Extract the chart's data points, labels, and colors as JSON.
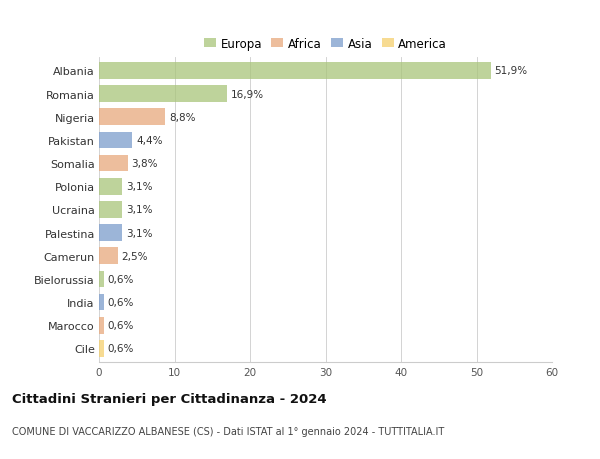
{
  "countries": [
    "Albania",
    "Romania",
    "Nigeria",
    "Pakistan",
    "Somalia",
    "Polonia",
    "Ucraina",
    "Palestina",
    "Camerun",
    "Bielorussia",
    "India",
    "Marocco",
    "Cile"
  ],
  "values": [
    51.9,
    16.9,
    8.8,
    4.4,
    3.8,
    3.1,
    3.1,
    3.1,
    2.5,
    0.6,
    0.6,
    0.6,
    0.6
  ],
  "labels": [
    "51,9%",
    "16,9%",
    "8,8%",
    "4,4%",
    "3,8%",
    "3,1%",
    "3,1%",
    "3,1%",
    "2,5%",
    "0,6%",
    "0,6%",
    "0,6%",
    "0,6%"
  ],
  "bar_colors": [
    "#a8c57a",
    "#a8c57a",
    "#e8a87c",
    "#7b9ccc",
    "#e8a87c",
    "#a8c57a",
    "#a8c57a",
    "#7b9ccc",
    "#e8a87c",
    "#a8c57a",
    "#7b9ccc",
    "#e8a87c",
    "#f5d06e"
  ],
  "legend_items": [
    {
      "label": "Europa",
      "color": "#a8c57a"
    },
    {
      "label": "Africa",
      "color": "#e8a87c"
    },
    {
      "label": "Asia",
      "color": "#7b9ccc"
    },
    {
      "label": "America",
      "color": "#f5d06e"
    }
  ],
  "xlim": [
    0,
    60
  ],
  "xticks": [
    0,
    10,
    20,
    30,
    40,
    50,
    60
  ],
  "title": "Cittadini Stranieri per Cittadinanza - 2024",
  "subtitle": "COMUNE DI VACCARIZZO ALBANESE (CS) - Dati ISTAT al 1° gennaio 2024 - TUTTITALIA.IT",
  "background_color": "#ffffff",
  "grid_color": "#cccccc",
  "bar_alpha": 0.75,
  "bar_height": 0.72,
  "label_fontsize": 7.5,
  "ytick_fontsize": 8.0,
  "xtick_fontsize": 7.5,
  "legend_fontsize": 8.5,
  "title_fontsize": 9.5,
  "subtitle_fontsize": 7.0
}
